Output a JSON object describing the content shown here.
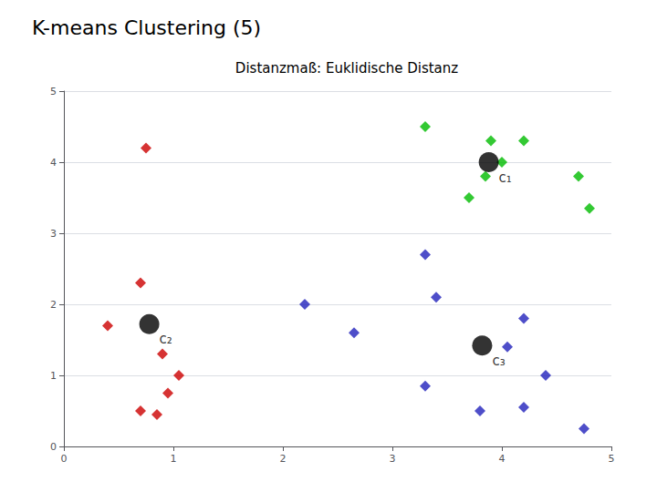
{
  "chart_data": {
    "type": "scatter",
    "title": "K-means Clustering (5)",
    "subtitle": "Distanzmaß: Euklidische Distanz",
    "xlim": [
      0,
      5
    ],
    "ylim": [
      0,
      5
    ],
    "xticks": [
      0,
      1,
      2,
      3,
      4,
      5
    ],
    "yticks": [
      0,
      1,
      2,
      3,
      4,
      5
    ],
    "grid": "y",
    "series": [
      {
        "color": "#00bb00",
        "marker": "diamond",
        "x": [
          3.3,
          3.9,
          4.2,
          4.0,
          3.85,
          3.7,
          4.7,
          4.8
        ],
        "values": [
          4.5,
          4.3,
          4.3,
          4.0,
          3.8,
          3.5,
          3.8,
          3.35
        ]
      },
      {
        "color": "#cc0000",
        "marker": "diamond",
        "x": [
          0.4,
          0.75,
          0.7,
          0.9,
          1.05,
          0.95,
          0.7,
          0.85
        ],
        "values": [
          1.7,
          4.2,
          2.3,
          1.3,
          1.0,
          0.75,
          0.5,
          0.45
        ]
      },
      {
        "color": "#2222bb",
        "marker": "diamond",
        "x": [
          2.2,
          2.65,
          3.3,
          3.4,
          3.3,
          4.05,
          4.2,
          3.8,
          4.2,
          4.4,
          4.75
        ],
        "values": [
          2.0,
          1.6,
          2.7,
          2.1,
          0.85,
          1.4,
          1.8,
          0.5,
          0.55,
          1.0,
          0.25
        ]
      },
      {
        "color": "black",
        "marker": "circle",
        "x": [
          3.88,
          0.78,
          3.82
        ],
        "values": [
          4.0,
          1.72,
          1.42
        ],
        "labels": [
          "c₁",
          "c₂",
          "c₃"
        ]
      }
    ]
  }
}
